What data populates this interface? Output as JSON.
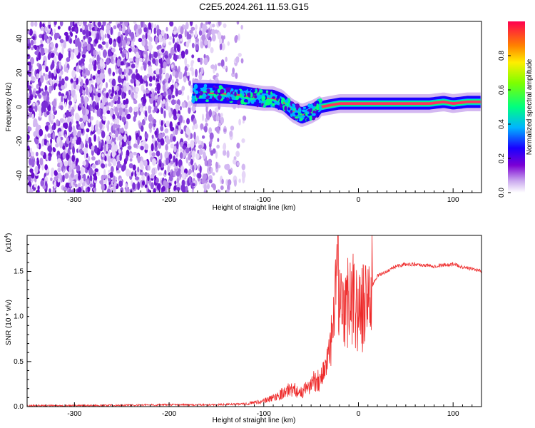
{
  "title": "C2E5.2024.261.11.53.G15",
  "colors": {
    "snr_line": "#ee2a2a",
    "axes": "#000000",
    "colormap": [
      "#ffffff",
      "#7b00d4",
      "#0000ff",
      "#00cfff",
      "#00ff66",
      "#ffff00",
      "#ff8000",
      "#ff0040"
    ]
  },
  "chart_data": [
    {
      "type": "heatmap",
      "title": "",
      "xlabel": "Height of straight line (km)",
      "ylabel": "Frequency (Hz)",
      "xlim": [
        -350,
        130
      ],
      "ylim": [
        -50,
        50
      ],
      "x_ticks": [
        "-300",
        "-200",
        "-100",
        "0",
        "100"
      ],
      "y_ticks": [
        "40",
        "20",
        "0",
        "-20",
        "-40"
      ],
      "grid": false,
      "colorbar": {
        "label": "Normalized spectral amplitude",
        "range": [
          0,
          1
        ],
        "ticks": [
          "0.0",
          "0.2",
          "0.4",
          "0.6",
          "0.8"
        ]
      },
      "signal_ridge": {
        "x": [
          -175,
          -150,
          -125,
          -100,
          -90,
          -80,
          -70,
          -60,
          -50,
          -40,
          -30,
          -20,
          -10,
          0,
          25,
          50,
          75,
          90,
          100,
          115,
          130
        ],
        "frequency": [
          8,
          8,
          7,
          5,
          5,
          3,
          -2,
          -5,
          -3,
          0,
          1,
          2,
          2,
          2,
          2,
          2,
          2,
          3,
          2,
          3,
          3
        ]
      }
    },
    {
      "type": "line",
      "title": "",
      "xlabel": "Height of straight line (km)",
      "ylabel": "SNR (10 * v/v)",
      "y_multiplier": "(x10",
      "y_multiplier_exp": "4",
      "y_multiplier_close": ")",
      "xlim": [
        -350,
        130
      ],
      "ylim": [
        0,
        1.9
      ],
      "x_ticks": [
        "-300",
        "-200",
        "-100",
        "0",
        "100"
      ],
      "y_ticks": [
        "0.0",
        "0.5",
        "1.0",
        "1.5"
      ],
      "grid": false,
      "series": [
        {
          "x": [
            -350,
            -300,
            -250,
            -200,
            -150,
            -120,
            -100,
            -90,
            -80,
            -70,
            -60,
            -50,
            -45,
            -40,
            -35,
            -30,
            -25,
            -22,
            -20,
            -15,
            -10,
            -5,
            0,
            5,
            10,
            15,
            20,
            30,
            40,
            50,
            60,
            70,
            80,
            90,
            100,
            110,
            120,
            130
          ],
          "y": [
            0.01,
            0.01,
            0.015,
            0.02,
            0.02,
            0.03,
            0.06,
            0.1,
            0.15,
            0.2,
            0.15,
            0.25,
            0.3,
            0.3,
            0.45,
            0.6,
            1.0,
            1.85,
            1.1,
            0.9,
            1.3,
            1.2,
            1.05,
            1.1,
            1.25,
            1.35,
            1.45,
            1.5,
            1.56,
            1.58,
            1.58,
            1.57,
            1.56,
            1.57,
            1.58,
            1.55,
            1.53,
            1.5
          ]
        }
      ]
    }
  ]
}
